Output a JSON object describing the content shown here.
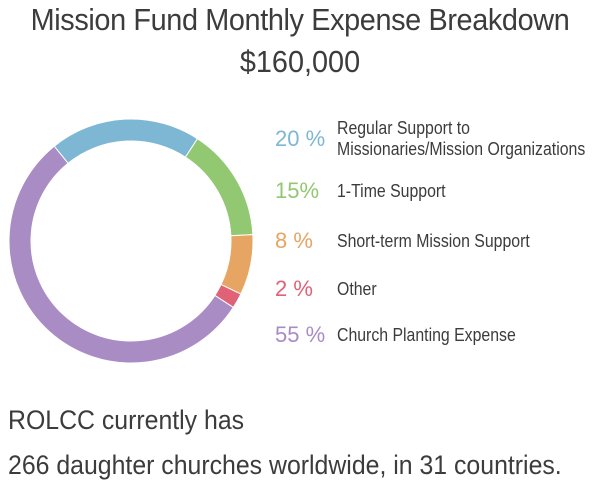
{
  "chart_data": {
    "type": "pie",
    "title": "Mission Fund Monthly Expense Breakdown",
    "subtitle": "$160,000",
    "slices": [
      {
        "pct_label": "20 %",
        "label_lines": [
          "Regular Support to",
          "Missionaries/Mission Organizations"
        ],
        "value": 20,
        "color": "#7db7d3"
      },
      {
        "pct_label": "15%",
        "label_lines": [
          "1-Time Support"
        ],
        "value": 15,
        "color": "#92c872"
      },
      {
        "pct_label": "8 %",
        "label_lines": [
          "Short-term Mission Support"
        ],
        "value": 8,
        "color": "#e6a563"
      },
      {
        "pct_label": "2 %",
        "label_lines": [
          "Other"
        ],
        "value": 2,
        "color": "#e06277"
      },
      {
        "pct_label": "55 %",
        "label_lines": [
          "Church Planting Expense"
        ],
        "value": 55,
        "color": "#a98cc4"
      }
    ]
  },
  "footer": {
    "line1": "ROLCC currently has",
    "line2": "266 daughter churches worldwide, in 31 countries."
  }
}
